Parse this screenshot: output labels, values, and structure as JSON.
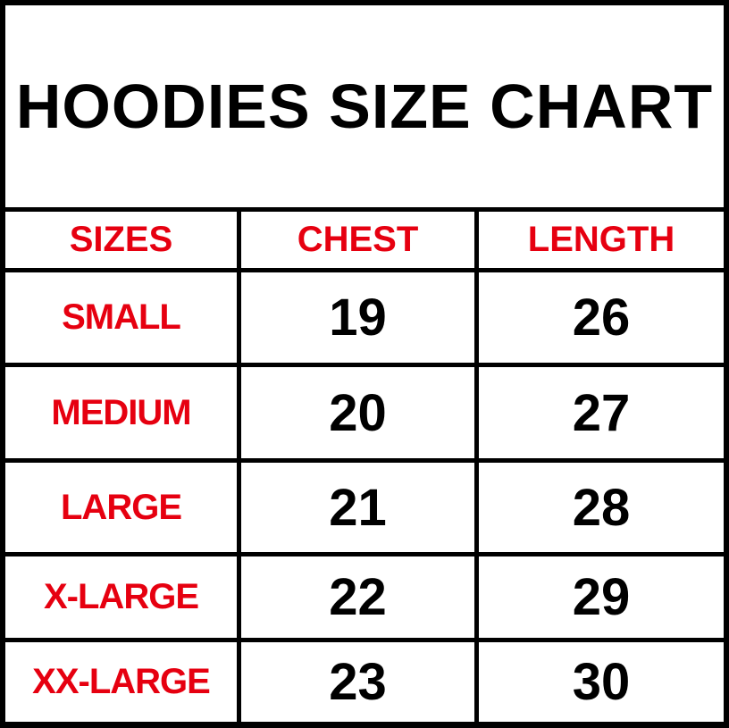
{
  "title": "HOODIES SIZE CHART",
  "colors": {
    "header_text": "#e60010",
    "size_text": "#e60010",
    "value_text": "#000000",
    "border": "#000000"
  },
  "columns": [
    "SIZES",
    "CHEST",
    "LENGTH"
  ],
  "rows": [
    {
      "size": "SMALL",
      "chest": "19",
      "length": "26"
    },
    {
      "size": "MEDIUM",
      "chest": "20",
      "length": "27"
    },
    {
      "size": "LARGE",
      "chest": "21",
      "length": "28"
    },
    {
      "size": "X-LARGE",
      "chest": "22",
      "length": "29"
    },
    {
      "size": "XX-LARGE",
      "chest": "23",
      "length": "30"
    }
  ]
}
